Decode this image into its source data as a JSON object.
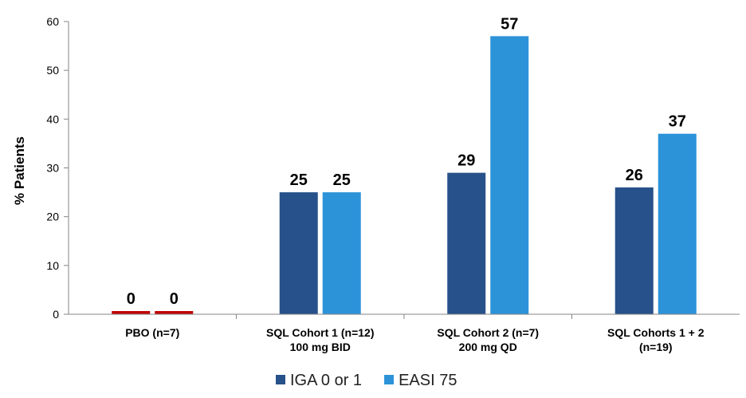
{
  "chart_data": {
    "type": "bar",
    "title": "",
    "xlabel": "",
    "ylabel": "% Patients",
    "ylim": [
      0,
      60
    ],
    "yticks": [
      0,
      10,
      20,
      30,
      40,
      50,
      60
    ],
    "categories": [
      [
        "PBO (n=7)"
      ],
      [
        "SQL Cohort 1 (n=12)",
        "100 mg BID"
      ],
      [
        "SQL Cohort 2 (n=7)",
        "200 mg QD"
      ],
      [
        "SQL Cohorts 1 + 2",
        "(n=19)"
      ]
    ],
    "series": [
      {
        "name": "IGA 0 or 1",
        "values": [
          0,
          25,
          29,
          26
        ],
        "color": "#27518a"
      },
      {
        "name": "EASI 75",
        "values": [
          0,
          25,
          57,
          37
        ],
        "color": "#2c93d9"
      }
    ],
    "zero_bar_color": "#c00000",
    "legend_position": "bottom-center"
  }
}
